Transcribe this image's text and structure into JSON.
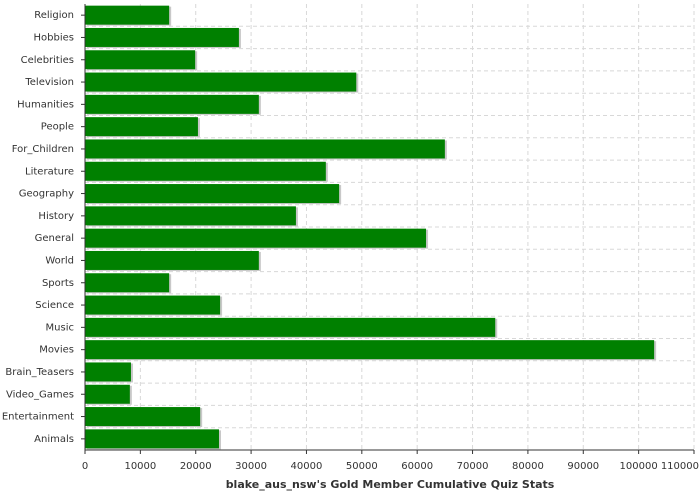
{
  "chart_data": {
    "type": "bar",
    "orientation": "horizontal",
    "title": "blake_aus_nsw's Gold Member Cumulative Quiz Stats",
    "categories": [
      "Religion",
      "Hobbies",
      "Celebrities",
      "Television",
      "Humanities",
      "People",
      "For_Children",
      "Literature",
      "Geography",
      "History",
      "General",
      "World",
      "Sports",
      "Science",
      "Music",
      "Movies",
      "Brain_Teasers",
      "Video_Games",
      "Entertainment",
      "Animals"
    ],
    "values": [
      15200,
      27800,
      19900,
      49000,
      31400,
      20400,
      65000,
      43500,
      45900,
      38100,
      61600,
      31400,
      15200,
      24400,
      74100,
      102800,
      8300,
      8100,
      20800,
      24200
    ],
    "color": "#008000",
    "xlim": [
      0,
      110000
    ],
    "xticks": [
      0,
      10000,
      20000,
      30000,
      40000,
      50000,
      60000,
      70000,
      80000,
      90000,
      100000,
      110000
    ],
    "grid": true
  }
}
